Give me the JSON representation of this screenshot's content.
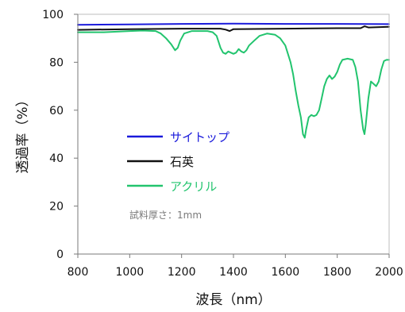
{
  "chart_data": {
    "type": "line",
    "xlabel": "波長（nm）",
    "ylabel": "透過率（%）",
    "xlim": [
      800,
      2000
    ],
    "ylim": [
      0,
      100
    ],
    "x_ticks": [
      800,
      1000,
      1200,
      1400,
      1600,
      1800,
      2000
    ],
    "y_ticks": [
      0,
      20,
      40,
      60,
      80,
      100
    ],
    "grid": false,
    "legend_position": "center-left",
    "annotation": "試料厚さ：1mm",
    "series": [
      {
        "name": "サイトップ",
        "color": "#1a1adb",
        "points": [
          [
            800,
            95.6
          ],
          [
            1000,
            95.8
          ],
          [
            1200,
            96.0
          ],
          [
            1400,
            96.1
          ],
          [
            1600,
            96.0
          ],
          [
            1800,
            96.0
          ],
          [
            2000,
            95.9
          ]
        ]
      },
      {
        "name": "石英",
        "color": "#111111",
        "points": [
          [
            800,
            93.5
          ],
          [
            1000,
            93.8
          ],
          [
            1200,
            94.0
          ],
          [
            1350,
            94.0
          ],
          [
            1370,
            93.6
          ],
          [
            1385,
            93.0
          ],
          [
            1400,
            93.8
          ],
          [
            1600,
            94.0
          ],
          [
            1800,
            94.2
          ],
          [
            1890,
            94.2
          ],
          [
            1905,
            95.0
          ],
          [
            1920,
            94.5
          ],
          [
            2000,
            94.8
          ]
        ]
      },
      {
        "name": "アクリル",
        "color": "#22c46e",
        "points": [
          [
            800,
            92.5
          ],
          [
            900,
            92.5
          ],
          [
            1000,
            93.0
          ],
          [
            1050,
            93.2
          ],
          [
            1100,
            93.0
          ],
          [
            1120,
            92.0
          ],
          [
            1140,
            90.0
          ],
          [
            1160,
            87.5
          ],
          [
            1175,
            85.0
          ],
          [
            1185,
            86.0
          ],
          [
            1195,
            89.0
          ],
          [
            1210,
            92.0
          ],
          [
            1240,
            93.0
          ],
          [
            1300,
            93.0
          ],
          [
            1320,
            92.5
          ],
          [
            1335,
            91.0
          ],
          [
            1350,
            86.0
          ],
          [
            1360,
            84.0
          ],
          [
            1370,
            83.5
          ],
          [
            1380,
            84.5
          ],
          [
            1390,
            84.0
          ],
          [
            1400,
            83.5
          ],
          [
            1410,
            84.0
          ],
          [
            1420,
            85.5
          ],
          [
            1430,
            84.5
          ],
          [
            1440,
            84.0
          ],
          [
            1450,
            85.0
          ],
          [
            1460,
            87.0
          ],
          [
            1480,
            89.0
          ],
          [
            1500,
            91.0
          ],
          [
            1530,
            92.0
          ],
          [
            1560,
            91.5
          ],
          [
            1580,
            90.0
          ],
          [
            1600,
            87.0
          ],
          [
            1620,
            80.0
          ],
          [
            1630,
            75.0
          ],
          [
            1640,
            68.0
          ],
          [
            1650,
            62.0
          ],
          [
            1660,
            57.0
          ],
          [
            1668,
            50.0
          ],
          [
            1675,
            48.5
          ],
          [
            1680,
            52.0
          ],
          [
            1690,
            57.0
          ],
          [
            1700,
            58.0
          ],
          [
            1710,
            57.5
          ],
          [
            1720,
            58.0
          ],
          [
            1730,
            60.0
          ],
          [
            1740,
            65.0
          ],
          [
            1750,
            70.0
          ],
          [
            1760,
            73.0
          ],
          [
            1770,
            74.5
          ],
          [
            1780,
            73.0
          ],
          [
            1790,
            74.0
          ],
          [
            1800,
            76.0
          ],
          [
            1810,
            79.0
          ],
          [
            1820,
            81.0
          ],
          [
            1840,
            81.5
          ],
          [
            1860,
            81.0
          ],
          [
            1870,
            78.0
          ],
          [
            1880,
            72.0
          ],
          [
            1890,
            60.0
          ],
          [
            1900,
            52.0
          ],
          [
            1905,
            50.0
          ],
          [
            1910,
            54.0
          ],
          [
            1920,
            65.0
          ],
          [
            1930,
            72.0
          ],
          [
            1940,
            71.0
          ],
          [
            1950,
            70.0
          ],
          [
            1960,
            72.0
          ],
          [
            1970,
            77.0
          ],
          [
            1980,
            80.5
          ],
          [
            1990,
            81.0
          ],
          [
            2000,
            81.0
          ]
        ]
      }
    ]
  }
}
